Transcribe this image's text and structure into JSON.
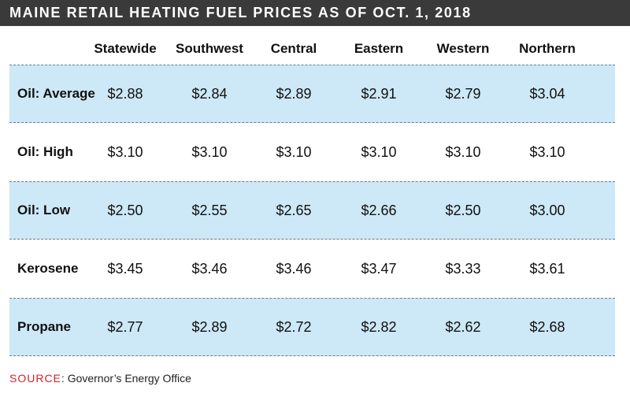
{
  "chart_data": {
    "type": "table",
    "title": "MAINE RETAIL HEATING FUEL PRICES AS OF OCT. 1, 2018",
    "columns": [
      "Statewide",
      "Southwest",
      "Central",
      "Eastern",
      "Western",
      "Northern"
    ],
    "rows": [
      {
        "label": "Oil: Average",
        "values": [
          "$2.88",
          "$2.84",
          "$2.89",
          "$2.91",
          "$2.79",
          "$3.04"
        ],
        "shaded": true
      },
      {
        "label": "Oil: High",
        "values": [
          "$3.10",
          "$3.10",
          "$3.10",
          "$3.10",
          "$3.10",
          "$3.10"
        ],
        "shaded": false
      },
      {
        "label": "Oil: Low",
        "values": [
          "$2.50",
          "$2.55",
          "$2.65",
          "$2.66",
          "$2.50",
          "$3.00"
        ],
        "shaded": true
      },
      {
        "label": "Kerosene",
        "values": [
          "$3.45",
          "$3.46",
          "$3.46",
          "$3.47",
          "$3.33",
          "$3.61"
        ],
        "shaded": false
      },
      {
        "label": "Propane",
        "values": [
          "$2.77",
          "$2.89",
          "$2.72",
          "$2.82",
          "$2.62",
          "$2.68"
        ],
        "shaded": true
      }
    ]
  },
  "source": {
    "label": "SOURCE",
    "text": "Governor’s Energy Office"
  },
  "colors": {
    "title_bar": "#3a3a3a",
    "row_shade": "#cde8f6",
    "source_accent": "#d2232a"
  }
}
